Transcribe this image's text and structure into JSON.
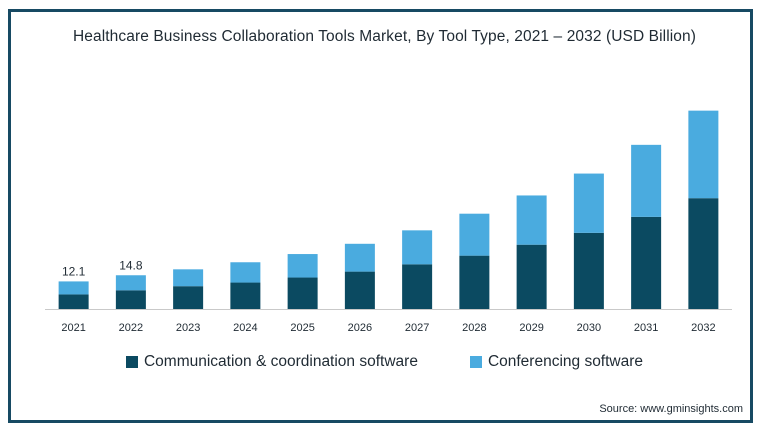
{
  "chart_data": {
    "type": "bar",
    "stacked": true,
    "title": "Healthcare Business Collaboration Tools Market, By Tool Type, 2021 – 2032 (USD Billion)",
    "categories": [
      "2021",
      "2022",
      "2023",
      "2024",
      "2025",
      "2026",
      "2027",
      "2028",
      "2029",
      "2030",
      "2031",
      "2032"
    ],
    "series": [
      {
        "name": "Communication & coordination software",
        "color": "#0b4a61",
        "values": [
          6.4,
          8.2,
          10.0,
          11.6,
          13.8,
          16.4,
          19.6,
          23.4,
          28.2,
          33.4,
          40.4,
          48.6
        ]
      },
      {
        "name": "Conferencing software",
        "color": "#4aabdf",
        "values": [
          5.7,
          6.6,
          7.4,
          8.9,
          10.3,
          12.2,
          14.9,
          18.4,
          21.6,
          26.0,
          31.6,
          38.4
        ]
      }
    ],
    "data_labels": [
      {
        "category": "2021",
        "text": "12.1"
      },
      {
        "category": "2022",
        "text": "14.8"
      }
    ],
    "ylim": [
      0,
      100
    ],
    "grid": false,
    "legend_position": "bottom",
    "source": "Source: www.gminsights.com"
  }
}
